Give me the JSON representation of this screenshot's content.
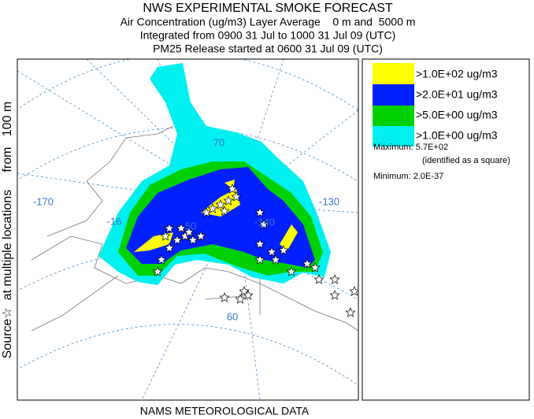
{
  "header": {
    "title": "NWS EXPERIMENTAL SMOKE FORECAST",
    "lines": [
      "Air Concentration (ug/m3) Layer Average    0 m and  5000 m",
      "Integrated from 0900 31 Jul to 1000 31 Jul 09 (UTC)",
      "PM25 Release started at 0600 31 Jul 09 (UTC)"
    ]
  },
  "side_label": "Source☆  at multiple locations     from   100 m",
  "footer": "NAMS METEOROLOGICAL DATA",
  "map_labels": [
    "-170",
    "-16",
    "50",
    "-140",
    "-130",
    "70",
    "60"
  ],
  "legend": [
    ">1.0E+02 ug/m3",
    ">2.0E+01 ug/m3",
    ">5.0E+00 ug/m3",
    ">1.0E+00 ug/m3"
  ],
  "stats": {
    "maximum": "Maximum: 5.7E+02",
    "note": "(identified as a square)",
    "minimum": "Minimum: 2.0E-37"
  }
}
